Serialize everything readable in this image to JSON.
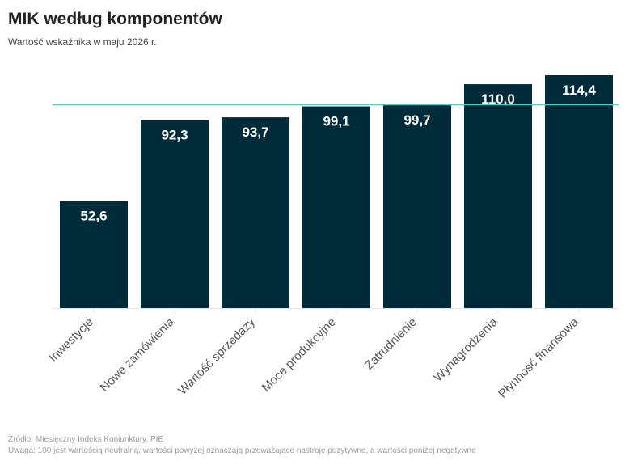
{
  "header": {
    "title": "MIK według komponentów",
    "subtitle": "Wartość wskaźnika w maju 2026 r."
  },
  "footer": {
    "source": "Źródło: Miesięczny Indeks Koniunktury, PIE",
    "note": "Uwaga: 100 jest wartością neutralną, wartości powyżej oznaczają przeważające nastroje pozytywne, a wartości poniżej negatywne"
  },
  "chart_data": {
    "type": "bar",
    "categories": [
      "Inwestycje",
      "Nowe zamówienia",
      "Wartość sprzedaży",
      "Moce produkcyjne",
      "Zatrudnienie",
      "Wynagrodzenia",
      "Płynność finansowa"
    ],
    "values": [
      52.6,
      92.3,
      93.7,
      99.1,
      99.7,
      110.0,
      114.4
    ],
    "value_labels": [
      "52,6",
      "92,3",
      "93,7",
      "99,1",
      "99,7",
      "110,0",
      "114,4"
    ],
    "reference_line": 100,
    "ylim": [
      0,
      114.4
    ],
    "bar_color": "#002b3a",
    "reference_color": "#3bd6c0",
    "label_color": "#ffffff",
    "grid": false,
    "legend": "none"
  }
}
